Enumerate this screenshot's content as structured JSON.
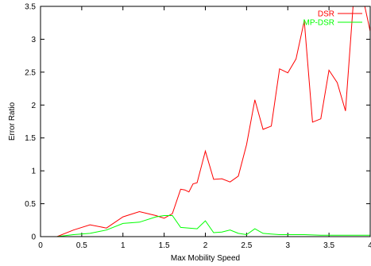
{
  "chart_data": {
    "type": "line",
    "title": "",
    "xlabel": "Max Mobility Speed",
    "ylabel": "Error Ratio",
    "xlim": [
      0,
      4
    ],
    "ylim": [
      0,
      3.5
    ],
    "xticks": [
      "0",
      "0.5",
      "1",
      "1.5",
      "2",
      "2.5",
      "3",
      "3.5",
      "4"
    ],
    "yticks": [
      "0",
      "0.5",
      "1",
      "1.5",
      "2",
      "2.5",
      "3",
      "3.5"
    ],
    "grid": false,
    "legend_position": "top-right",
    "series": [
      {
        "name": "DSR",
        "color": "#ff0000",
        "x": [
          0.2,
          0.4,
          0.6,
          0.8,
          1.0,
          1.2,
          1.4,
          1.5,
          1.6,
          1.7,
          1.75,
          1.8,
          1.85,
          1.9,
          2.0,
          2.1,
          2.2,
          2.3,
          2.4,
          2.5,
          2.6,
          2.7,
          2.8,
          2.9,
          3.0,
          3.1,
          3.2,
          3.3,
          3.4,
          3.5,
          3.6,
          3.7,
          3.8,
          3.9,
          4.0
        ],
        "values": [
          0.0,
          0.1,
          0.18,
          0.13,
          0.3,
          0.38,
          0.32,
          0.28,
          0.35,
          0.72,
          0.71,
          0.68,
          0.8,
          0.82,
          1.3,
          0.87,
          0.88,
          0.83,
          0.92,
          1.4,
          2.08,
          1.63,
          1.68,
          2.55,
          2.49,
          2.7,
          3.28,
          1.74,
          1.79,
          2.53,
          2.34,
          1.91,
          3.65,
          3.7,
          3.12
        ]
      },
      {
        "name": "MP-DSR",
        "color": "#00ff00",
        "x": [
          0.2,
          0.4,
          0.6,
          0.8,
          1.0,
          1.2,
          1.4,
          1.5,
          1.6,
          1.7,
          1.8,
          1.9,
          2.0,
          2.1,
          2.2,
          2.3,
          2.4,
          2.5,
          2.6,
          2.7,
          2.8,
          2.9,
          3.0,
          3.2,
          3.4,
          3.6,
          3.8,
          4.0
        ],
        "values": [
          0.0,
          0.03,
          0.05,
          0.1,
          0.2,
          0.22,
          0.3,
          0.32,
          0.32,
          0.14,
          0.13,
          0.12,
          0.24,
          0.06,
          0.07,
          0.1,
          0.05,
          0.03,
          0.12,
          0.05,
          0.04,
          0.03,
          0.03,
          0.03,
          0.02,
          0.02,
          0.02,
          0.02
        ]
      }
    ]
  }
}
